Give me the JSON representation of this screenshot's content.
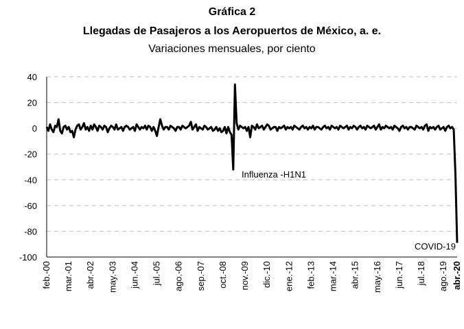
{
  "chart_data": {
    "type": "line",
    "title": "Gráfica 2",
    "subtitle": "Llegadas de Pasajeros a los Aeropuertos de México, a. e.",
    "units": "Variaciones mensuales, por ciento",
    "annotations": [
      "Influenza -H1N1",
      "COVID-19"
    ],
    "categories": [
      "feb.-00",
      null,
      null,
      null,
      null,
      null,
      null,
      null,
      null,
      null,
      null,
      null,
      null,
      "mar.-01",
      null,
      null,
      null,
      null,
      null,
      null,
      null,
      null,
      null,
      null,
      null,
      null,
      "abr.-02",
      null,
      null,
      null,
      null,
      null,
      null,
      null,
      null,
      null,
      null,
      null,
      null,
      "may.-03",
      null,
      null,
      null,
      null,
      null,
      null,
      null,
      null,
      null,
      null,
      null,
      null,
      "jun.-04",
      null,
      null,
      null,
      null,
      null,
      null,
      null,
      null,
      null,
      null,
      null,
      null,
      "jul.-05",
      null,
      null,
      null,
      null,
      null,
      null,
      null,
      null,
      null,
      null,
      null,
      null,
      "ago.-06",
      null,
      null,
      null,
      null,
      null,
      null,
      null,
      null,
      null,
      null,
      null,
      null,
      "sep.-07",
      null,
      null,
      null,
      null,
      null,
      null,
      null,
      null,
      null,
      null,
      null,
      null,
      "oct.-08",
      null,
      null,
      null,
      null,
      null,
      null,
      null,
      null,
      null,
      null,
      null,
      null,
      "nov.-09",
      null,
      null,
      null,
      null,
      null,
      null,
      null,
      null,
      null,
      null,
      null,
      null,
      "dic.-10",
      null,
      null,
      null,
      null,
      null,
      null,
      null,
      null,
      null,
      null,
      null,
      null,
      "ene.-12",
      null,
      null,
      null,
      null,
      null,
      null,
      null,
      null,
      null,
      null,
      null,
      null,
      "feb.-13",
      null,
      null,
      null,
      null,
      null,
      null,
      null,
      null,
      null,
      null,
      null,
      null,
      "mar.-14",
      null,
      null,
      null,
      null,
      null,
      null,
      null,
      null,
      null,
      null,
      null,
      null,
      "abr.-15",
      null,
      null,
      null,
      null,
      null,
      null,
      null,
      null,
      null,
      null,
      null,
      null,
      "may.-16",
      null,
      null,
      null,
      null,
      null,
      null,
      null,
      null,
      null,
      null,
      null,
      null,
      "jun.-17",
      null,
      null,
      null,
      null,
      null,
      null,
      null,
      null,
      null,
      null,
      null,
      null,
      "jul.-18",
      null,
      null,
      null,
      null,
      null,
      null,
      null,
      null,
      null,
      null,
      null,
      null,
      "ago.-19",
      null,
      null,
      null,
      null,
      null,
      null,
      null,
      "abr.-20"
    ],
    "series": [
      {
        "color": "#000000",
        "values": [
          1,
          -2,
          3,
          -1,
          -3,
          2,
          1,
          7,
          -2,
          -4,
          1,
          2,
          -1,
          1,
          -3,
          -2,
          -7,
          -1,
          2,
          3,
          -1,
          1,
          4,
          -1,
          1,
          -2,
          2,
          -1,
          3,
          1,
          -2,
          2,
          1,
          -1,
          2,
          1,
          -3,
          0,
          2,
          1,
          -1,
          3,
          -1,
          0,
          1,
          -2,
          1,
          2,
          1,
          -1,
          0,
          1,
          -2,
          3,
          1,
          -1,
          1,
          0,
          2,
          -1,
          2,
          1,
          -2,
          1,
          -2,
          -6,
          1,
          7,
          2,
          -1,
          1,
          1,
          -1,
          2,
          1,
          0,
          -2,
          1,
          1,
          -1,
          2,
          1,
          0,
          1,
          2,
          5,
          -1,
          1,
          3,
          -2,
          1,
          0,
          -1,
          2,
          1,
          -1,
          0,
          1,
          -2,
          -1,
          1,
          -2,
          0,
          -3,
          -2,
          1,
          -4,
          1,
          -3,
          -5,
          -32,
          34,
          4,
          -1,
          2,
          1,
          0,
          1,
          -2,
          1,
          -7,
          2,
          1,
          -1,
          3,
          0,
          1,
          2,
          -1,
          1,
          3,
          2,
          -1,
          0,
          1,
          1,
          -2,
          1,
          0,
          1,
          2,
          -1,
          1,
          0,
          1,
          -1,
          2,
          1,
          0,
          -1,
          1,
          2,
          0,
          1,
          -1,
          1,
          0,
          2,
          -1,
          1,
          1,
          0,
          -1,
          1,
          2,
          0,
          1,
          -1,
          2,
          1,
          0,
          1,
          -1,
          2,
          1,
          0,
          1,
          2,
          -1,
          1,
          0,
          2,
          1,
          -1,
          1,
          2,
          0,
          1,
          -1,
          2,
          1,
          0,
          1,
          2,
          -1,
          1,
          3,
          -1,
          1,
          0,
          2,
          1,
          0,
          1,
          -1,
          2,
          1,
          0,
          -2,
          1,
          2,
          0,
          1,
          -1,
          1,
          1,
          0,
          -1,
          2,
          1,
          0,
          1,
          -1,
          2,
          3,
          -2,
          1,
          0,
          1,
          -1,
          1,
          2,
          -1,
          0,
          1,
          -2,
          1,
          2,
          0,
          1,
          -1,
          -36,
          -89
        ]
      }
    ],
    "ylim": [
      -100,
      40
    ],
    "yticks": [
      -100,
      -80,
      -60,
      -40,
      -20,
      0,
      20,
      40
    ],
    "grid": true
  }
}
